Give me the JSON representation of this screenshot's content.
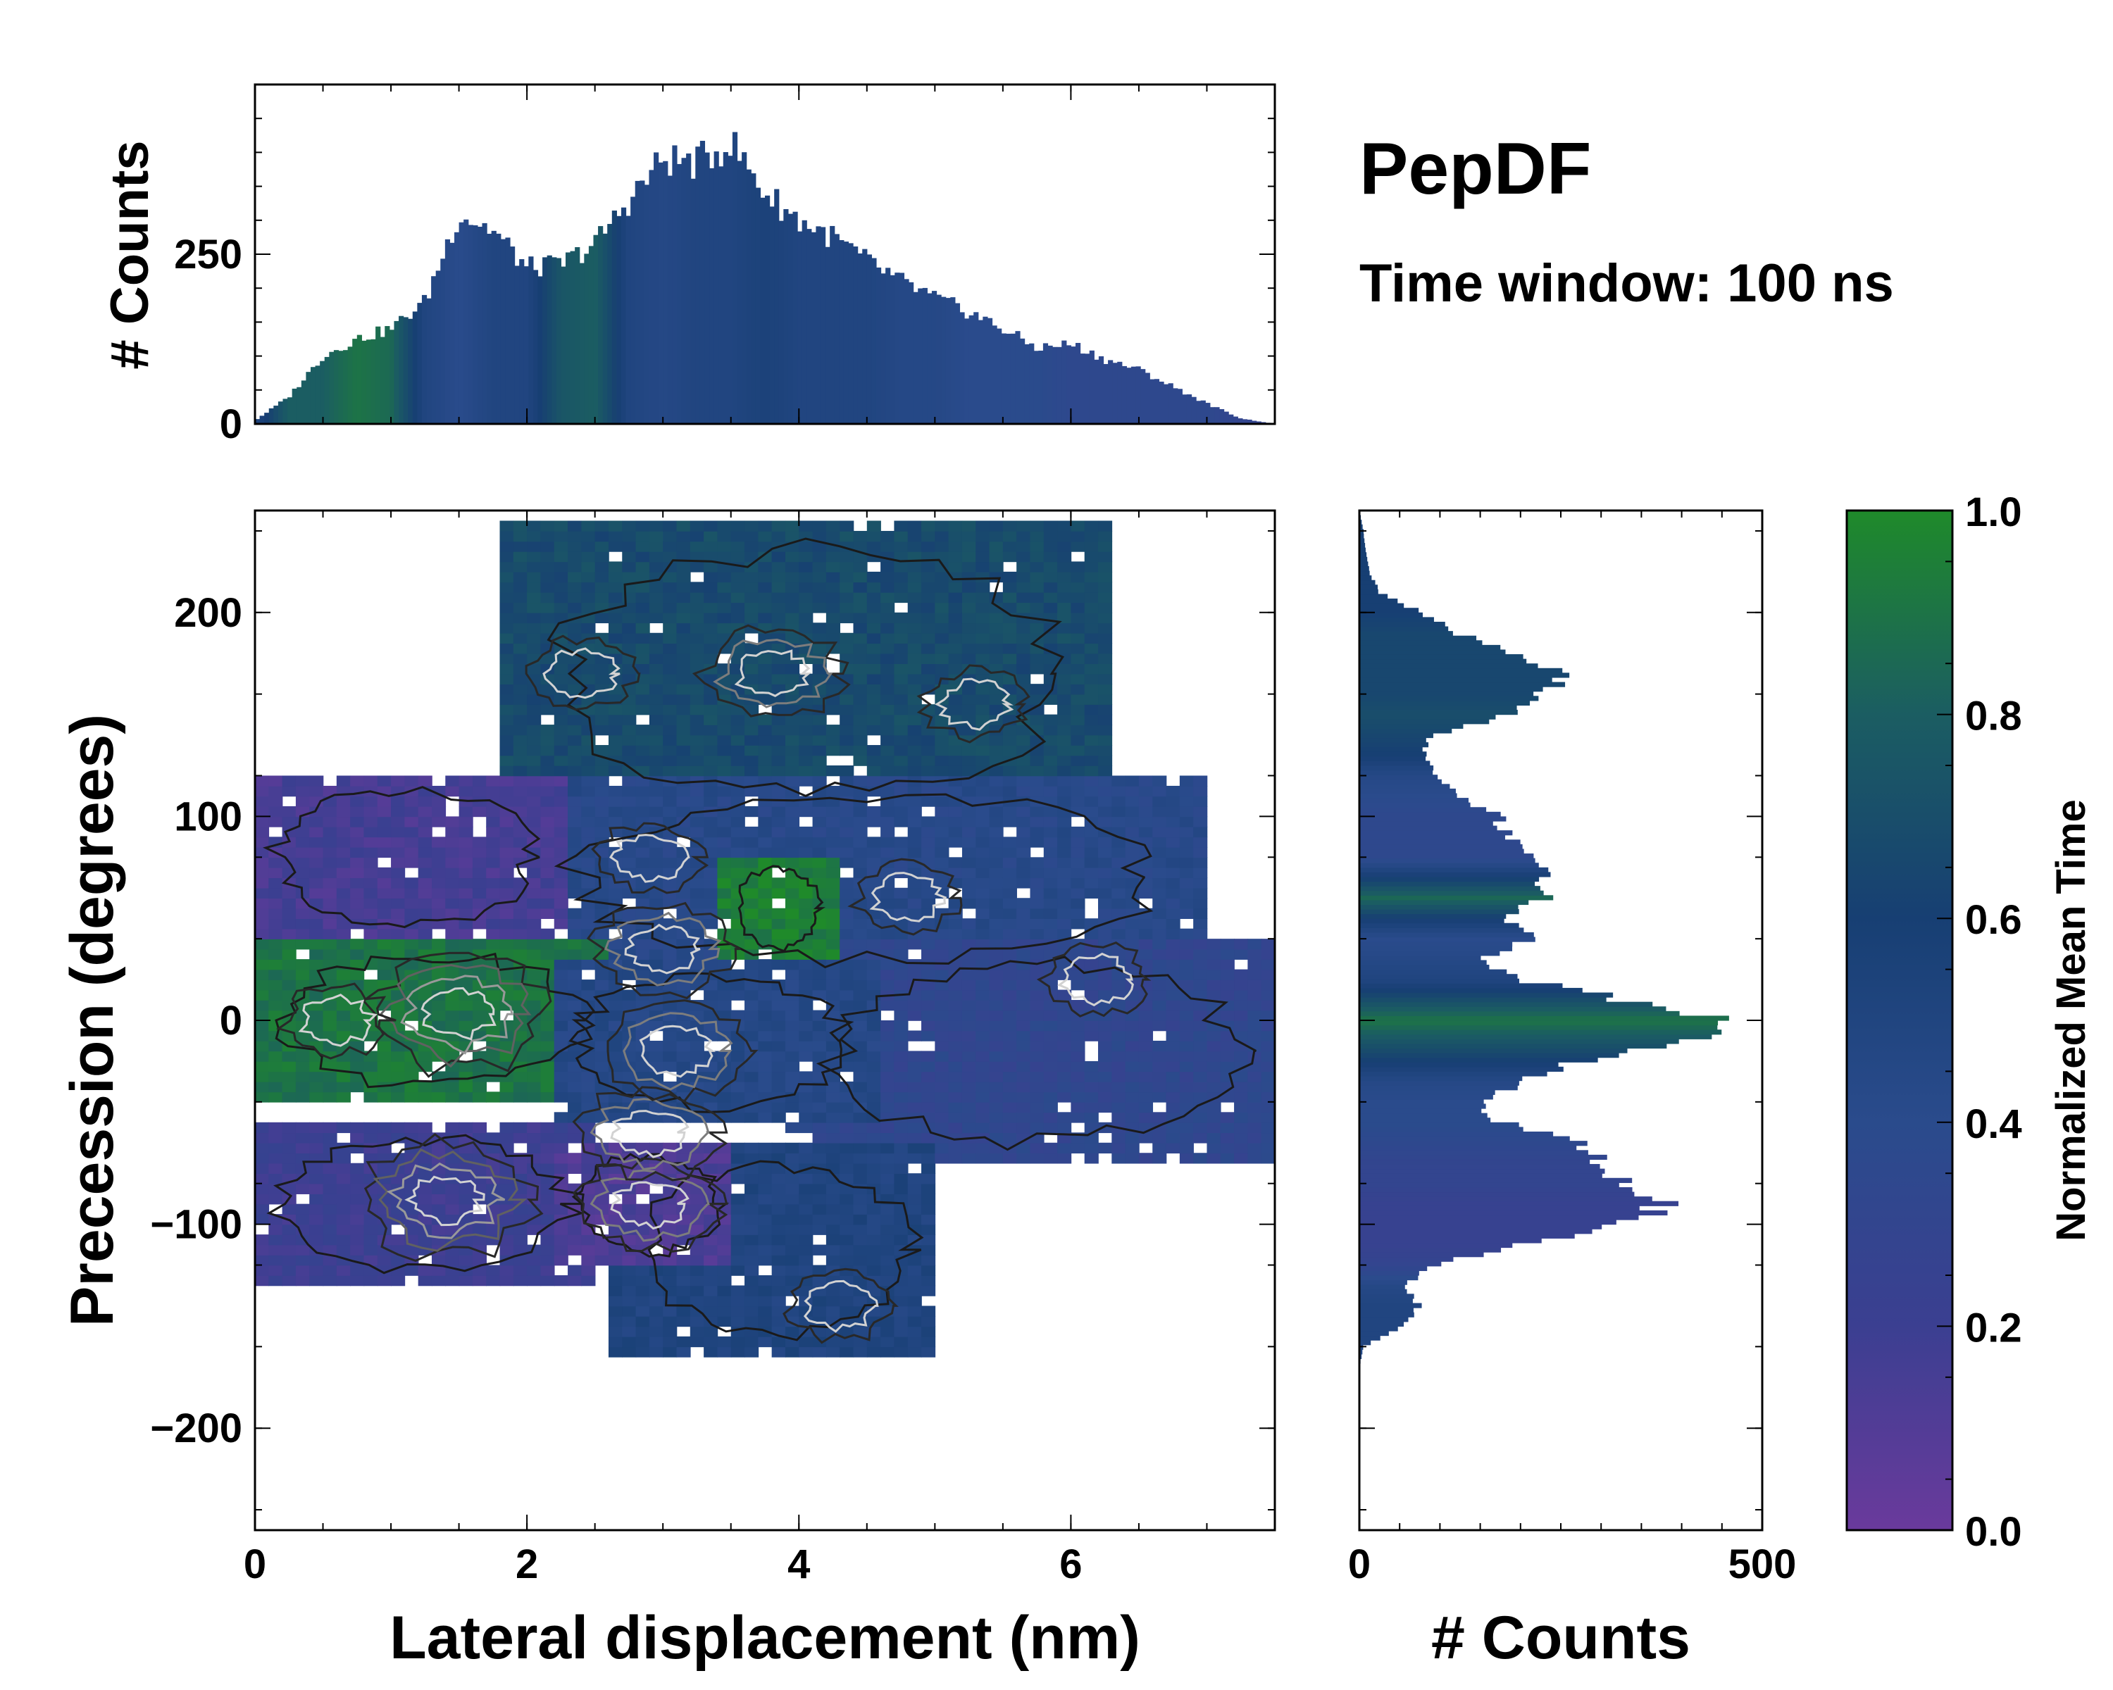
{
  "title": "PepDF",
  "subtitle": "Time window: 100 ns",
  "chart_data": [
    {
      "id": "joint",
      "type": "heatmap",
      "xlabel": "Lateral displacement (nm)",
      "ylabel": "Precession (degrees)",
      "xlim": [
        0,
        7.5
      ],
      "ylim": [
        -250,
        250
      ],
      "xticks": [
        0,
        2,
        4,
        6
      ],
      "xtick_labels": [
        "0",
        "2",
        "4",
        "6"
      ],
      "yticks": [
        -200,
        -100,
        0,
        100,
        200
      ],
      "ytick_labels": [
        "−200",
        "−100",
        "0",
        "100",
        "200"
      ],
      "value_meaning": "Normalized Mean Time",
      "regions": [
        {
          "name": "upper",
          "x_range": [
            1.9,
            6.2
          ],
          "y_range": [
            95,
            245
          ],
          "mean_time": 0.68
        },
        {
          "name": "upper-left",
          "x_range": [
            0.0,
            2.2
          ],
          "y_range": [
            40,
            120
          ],
          "mean_time": 0.15
        },
        {
          "name": "center-upper",
          "x_range": [
            2.0,
            7.0
          ],
          "y_range": [
            20,
            120
          ],
          "mean_time": 0.42
        },
        {
          "name": "green-spot",
          "x_range": [
            3.5,
            4.2
          ],
          "y_range": [
            30,
            80
          ],
          "mean_time": 0.95
        },
        {
          "name": "left-band",
          "x_range": [
            0.0,
            2.6
          ],
          "y_range": [
            -40,
            40
          ],
          "mean_time": 0.9
        },
        {
          "name": "center",
          "x_range": [
            2.2,
            4.5
          ],
          "y_range": [
            -50,
            30
          ],
          "mean_time": 0.45
        },
        {
          "name": "right",
          "x_range": [
            4.0,
            7.5
          ],
          "y_range": [
            -70,
            40
          ],
          "mean_time": 0.33
        },
        {
          "name": "lower-left",
          "x_range": [
            0.0,
            2.5
          ],
          "y_range": [
            -130,
            -50
          ],
          "mean_time": 0.2
        },
        {
          "name": "lower-mid",
          "x_range": [
            2.3,
            3.5
          ],
          "y_range": [
            -120,
            -60
          ],
          "mean_time": 0.12
        },
        {
          "name": "lower-right",
          "x_range": [
            2.7,
            5.0
          ],
          "y_range": [
            -165,
            -60
          ],
          "mean_time": 0.5
        }
      ],
      "density_peaks": [
        {
          "x": 1.5,
          "y": 3,
          "level": 1.0
        },
        {
          "x": 1.4,
          "y": -88,
          "level": 0.95
        },
        {
          "x": 2.9,
          "y": -90,
          "level": 0.8
        },
        {
          "x": 3.0,
          "y": 35,
          "level": 0.75
        },
        {
          "x": 2.9,
          "y": -55,
          "level": 0.7
        },
        {
          "x": 3.1,
          "y": -15,
          "level": 0.7
        },
        {
          "x": 3.8,
          "y": 170,
          "level": 0.7
        },
        {
          "x": 2.4,
          "y": 170,
          "level": 0.6
        },
        {
          "x": 4.3,
          "y": -140,
          "level": 0.6
        },
        {
          "x": 5.3,
          "y": 155,
          "level": 0.55
        },
        {
          "x": 2.9,
          "y": 80,
          "level": 0.55
        },
        {
          "x": 4.8,
          "y": 60,
          "level": 0.5
        },
        {
          "x": 6.2,
          "y": 20,
          "level": 0.45
        },
        {
          "x": 0.6,
          "y": 0,
          "level": 0.5
        }
      ]
    },
    {
      "id": "x-marginal",
      "type": "bar",
      "ylabel": "# Counts",
      "xlim": [
        0,
        7.5
      ],
      "ylim": [
        0,
        500
      ],
      "yticks": [
        0,
        250
      ],
      "ytick_labels": [
        "0",
        "250"
      ],
      "x": [
        0.0,
        0.25,
        0.5,
        0.75,
        1.0,
        1.25,
        1.5,
        1.75,
        2.0,
        2.25,
        2.5,
        2.75,
        3.0,
        3.25,
        3.5,
        3.75,
        4.0,
        4.25,
        4.5,
        4.75,
        5.0,
        5.25,
        5.5,
        5.75,
        6.0,
        6.25,
        6.5,
        6.75,
        7.0,
        7.25,
        7.5
      ],
      "values": [
        5,
        40,
        100,
        125,
        140,
        180,
        310,
        285,
        230,
        235,
        265,
        330,
        390,
        385,
        415,
        340,
        300,
        275,
        240,
        210,
        185,
        165,
        140,
        112,
        118,
        95,
        80,
        55,
        30,
        8,
        0
      ],
      "mean_time": [
        0.5,
        0.8,
        0.8,
        0.9,
        0.85,
        0.5,
        0.4,
        0.5,
        0.5,
        0.75,
        0.8,
        0.5,
        0.45,
        0.5,
        0.5,
        0.55,
        0.5,
        0.5,
        0.5,
        0.45,
        0.45,
        0.4,
        0.4,
        0.4,
        0.35,
        0.35,
        0.35,
        0.35,
        0.35,
        0.3,
        0.3
      ]
    },
    {
      "id": "y-marginal",
      "type": "bar",
      "orientation": "horizontal",
      "xlabel": "# Counts",
      "xlim": [
        0,
        500
      ],
      "ylim": [
        -250,
        250
      ],
      "xticks": [
        0,
        500
      ],
      "xtick_labels": [
        "0",
        "500"
      ],
      "y": [
        -250,
        -240,
        -230,
        -220,
        -210,
        -200,
        -190,
        -180,
        -170,
        -160,
        -150,
        -140,
        -130,
        -120,
        -110,
        -100,
        -90,
        -80,
        -70,
        -60,
        -50,
        -40,
        -30,
        -20,
        -10,
        0,
        10,
        20,
        30,
        40,
        50,
        60,
        70,
        80,
        90,
        100,
        110,
        120,
        130,
        140,
        150,
        160,
        170,
        180,
        190,
        200,
        210,
        220,
        230,
        240,
        250
      ],
      "values": [
        0,
        0,
        0,
        0,
        0,
        0,
        0,
        0,
        0,
        5,
        50,
        75,
        55,
        95,
        190,
        330,
        385,
        320,
        305,
        265,
        175,
        150,
        205,
        270,
        400,
        450,
        330,
        200,
        150,
        220,
        170,
        240,
        230,
        205,
        190,
        170,
        125,
        90,
        80,
        90,
        185,
        225,
        255,
        200,
        120,
        75,
        25,
        12,
        8,
        5,
        0
      ],
      "mean_time": [
        0.4,
        0.4,
        0.4,
        0.4,
        0.4,
        0.4,
        0.4,
        0.4,
        0.4,
        0.5,
        0.5,
        0.5,
        0.45,
        0.3,
        0.25,
        0.25,
        0.25,
        0.3,
        0.3,
        0.35,
        0.4,
        0.4,
        0.45,
        0.6,
        0.75,
        0.9,
        0.7,
        0.5,
        0.45,
        0.4,
        0.6,
        0.85,
        0.6,
        0.35,
        0.35,
        0.35,
        0.4,
        0.45,
        0.6,
        0.65,
        0.7,
        0.65,
        0.65,
        0.65,
        0.65,
        0.6,
        0.6,
        0.6,
        0.6,
        0.6,
        0.6
      ]
    },
    {
      "id": "colorbar",
      "type": "colorbar",
      "label": "Normalized Mean Time",
      "ylim": [
        0.0,
        1.0
      ],
      "ticks": [
        0.0,
        0.2,
        0.4,
        0.6,
        0.8,
        1.0
      ],
      "tick_labels": [
        "0.0",
        "0.2",
        "0.4",
        "0.6",
        "0.8",
        "1.0"
      ],
      "colormap": [
        "#6a3a9c",
        "#3b3f91",
        "#2a4b8c",
        "#173f73",
        "#1b5d62",
        "#1f8a2a"
      ]
    }
  ]
}
